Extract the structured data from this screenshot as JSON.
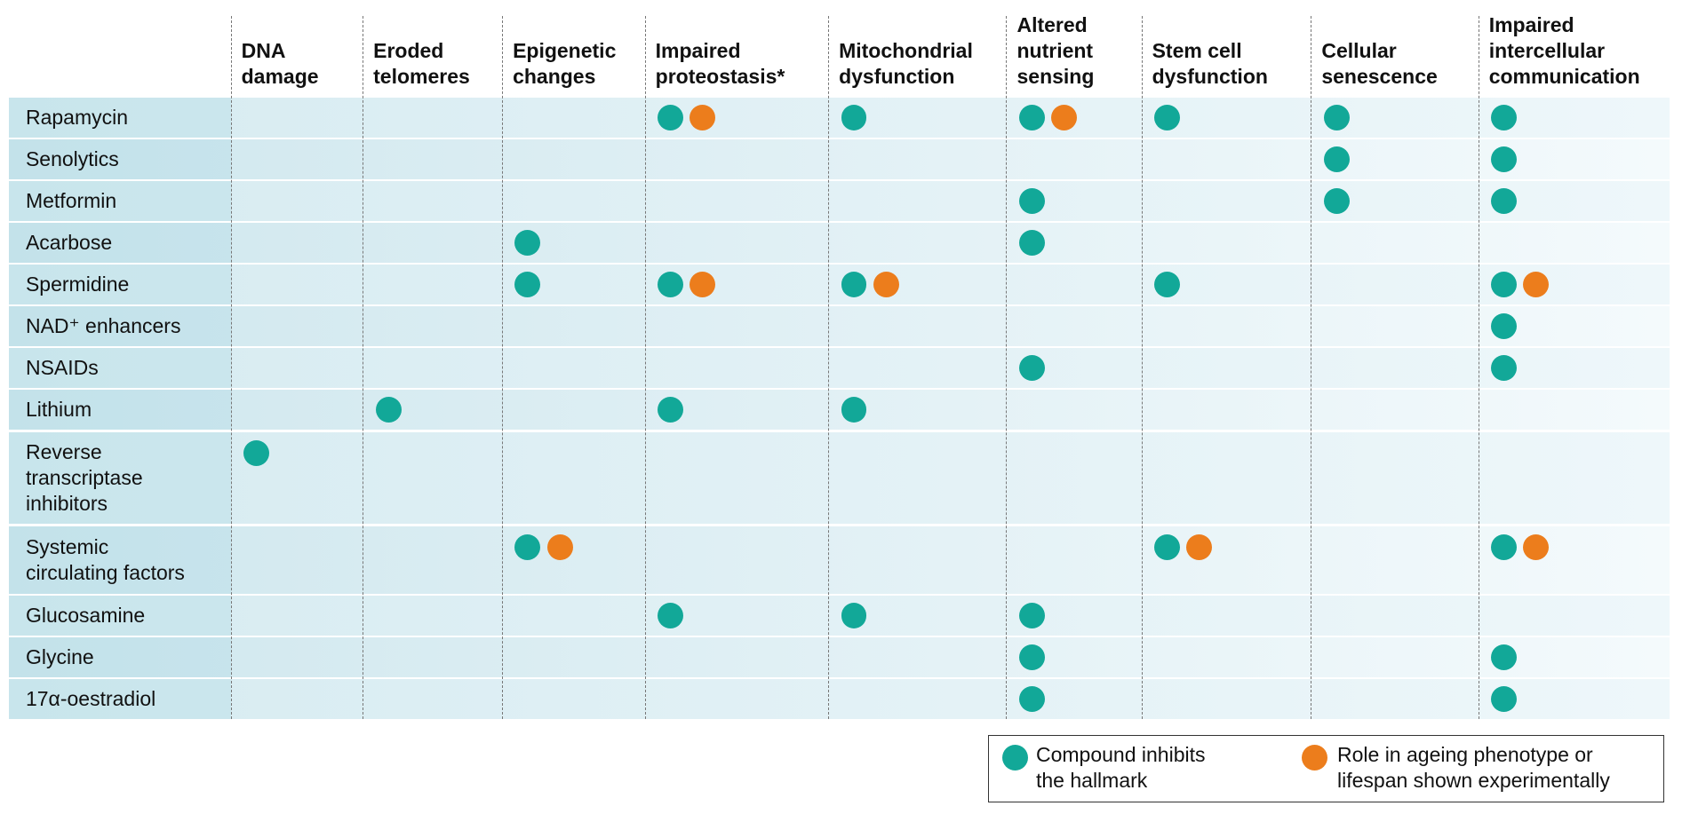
{
  "columns": [
    "DNA\ndamage",
    "Eroded\ntelomeres",
    "Epigenetic\nchanges",
    "Impaired\nproteostasis*",
    "Mitochondrial\ndysfunction",
    "Altered\nnutrient\nsensing",
    "Stem cell\ndysfunction",
    "Cellular\nsenescence",
    "Impaired\nintercellular\ncommunication"
  ],
  "rows": [
    {
      "label": "Rapamycin",
      "inhibits": [
        3,
        4,
        5,
        6,
        7,
        8
      ],
      "experimental": [
        3,
        5
      ]
    },
    {
      "label": "Senolytics",
      "inhibits": [
        7,
        8
      ],
      "experimental": []
    },
    {
      "label": "Metformin",
      "inhibits": [
        5,
        7,
        8
      ],
      "experimental": []
    },
    {
      "label": "Acarbose",
      "inhibits": [
        2,
        5
      ],
      "experimental": []
    },
    {
      "label": "Spermidine",
      "inhibits": [
        2,
        3,
        4,
        6,
        8
      ],
      "experimental": [
        3,
        4,
        8
      ]
    },
    {
      "label": "NAD⁺ enhancers",
      "inhibits": [
        8
      ],
      "experimental": []
    },
    {
      "label": "NSAIDs",
      "inhibits": [
        5,
        8
      ],
      "experimental": []
    },
    {
      "label": "Lithium",
      "inhibits": [
        1,
        3,
        4
      ],
      "experimental": []
    },
    {
      "label": "Reverse\ntranscriptase\ninhibitors",
      "inhibits": [
        0
      ],
      "experimental": []
    },
    {
      "label": "Systemic\ncirculating factors",
      "inhibits": [
        2,
        6,
        8
      ],
      "experimental": [
        2,
        6,
        8
      ]
    },
    {
      "label": "Glucosamine",
      "inhibits": [
        3,
        4,
        5
      ],
      "experimental": []
    },
    {
      "label": "Glycine",
      "inhibits": [
        5,
        8
      ],
      "experimental": []
    },
    {
      "label": "17α-oestradiol",
      "inhibits": [
        5,
        8
      ],
      "experimental": []
    }
  ],
  "legend": {
    "inhibits": "Compound inhibits\nthe hallmark",
    "experimental": "Role in ageing phenotype or\nlifespan shown experimentally"
  },
  "colors": {
    "inhibits": "#12a898",
    "experimental": "#ec7d1c"
  }
}
